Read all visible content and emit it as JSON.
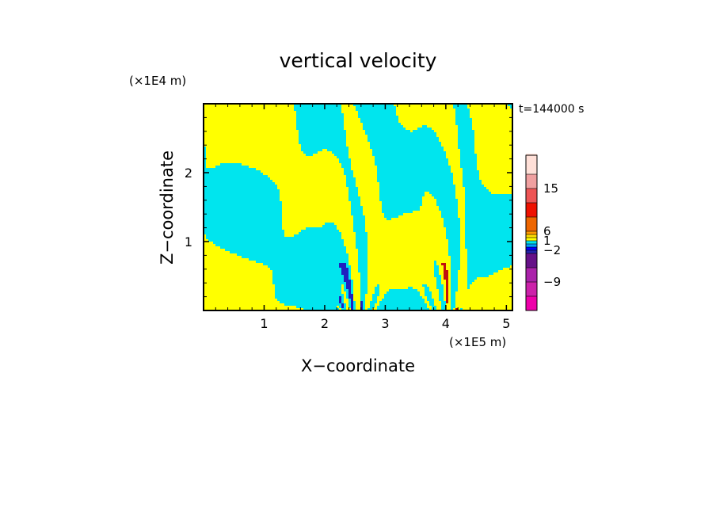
{
  "chart_data": {
    "type": "heatmap",
    "title": "vertical velocity",
    "xlabel": "X−coordinate",
    "ylabel": "Z−coordinate",
    "x_unit": "(×1E5 m)",
    "y_unit": "(×1E4 m)",
    "time_label": "t=144000 s",
    "xlim": [
      0,
      5.1
    ],
    "ylim": [
      0,
      3.0
    ],
    "x_ticks": [
      1,
      2,
      3,
      4,
      5
    ],
    "y_ticks": [
      1,
      2
    ],
    "x_tick_labels": [
      "1",
      "2",
      "3",
      "4",
      "5"
    ],
    "y_tick_labels": [
      "1",
      "2"
    ],
    "field_colors": {
      "positive": "#ffff00",
      "negative": "#00e5ee",
      "strong_negative": "#2020c0",
      "strong_positive": "#c01010"
    },
    "colorbar": {
      "levels": [
        "−15",
        "−12",
        "−9",
        "−6",
        "−4",
        "−2",
        "−1",
        "0",
        "1",
        "2",
        "4",
        "6",
        "9",
        "12",
        "15",
        "18"
      ],
      "colors": [
        "#ee00aa",
        "#cc22aa",
        "#aa22aa",
        "#661188",
        "#2222aa",
        "#0000ff",
        "#00a0ff",
        "#00e5ee",
        "#ffff00",
        "#ffdd00",
        "#ff9900",
        "#ee6600",
        "#ee1100",
        "#ee5555",
        "#f0a0a0",
        "#ffe0d8"
      ],
      "tick_labels": [
        "15",
        "6",
        "1",
        "−2",
        "−9"
      ],
      "tick_values": [
        15,
        6,
        1,
        -2,
        -9
      ]
    }
  }
}
